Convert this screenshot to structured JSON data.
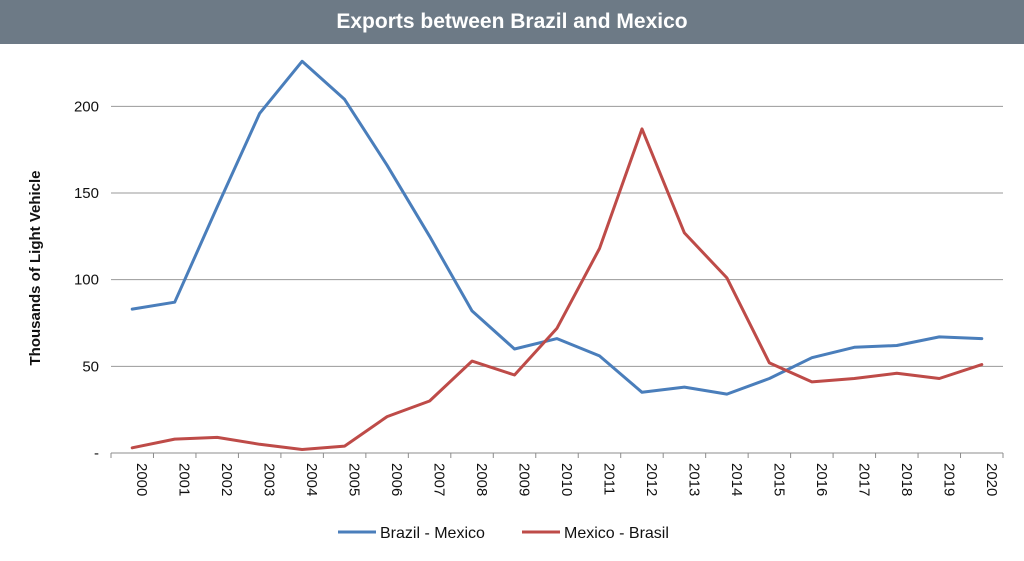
{
  "chart_data": {
    "type": "line",
    "title": "Exports between Brazil and Mexico",
    "xlabel": "",
    "ylabel": "Thousands of Light Vehicle",
    "categories": [
      "2000",
      "2001",
      "2002",
      "2003",
      "2004",
      "2005",
      "2006",
      "2007",
      "2008",
      "2009",
      "2010",
      "2011",
      "2012",
      "2013",
      "2014",
      "2015",
      "2016",
      "2017",
      "2018",
      "2019",
      "2020"
    ],
    "ylim": [
      0,
      225
    ],
    "yticks": [
      0,
      50,
      100,
      150,
      200
    ],
    "ytick_labels": [
      "-",
      "50",
      "100",
      "150",
      "200"
    ],
    "grid": true,
    "legend_position": "bottom",
    "series": [
      {
        "name": "Brazil - Mexico",
        "color": "#4a7ebb",
        "values": [
          83,
          87,
          142,
          196,
          226,
          204,
          166,
          125,
          82,
          60,
          66,
          56,
          35,
          38,
          34,
          43,
          55,
          61,
          62,
          67,
          66
        ]
      },
      {
        "name": "Mexico - Brasil",
        "color": "#be4b48",
        "values": [
          3,
          8,
          9,
          5,
          2,
          4,
          21,
          30,
          53,
          45,
          72,
          118,
          187,
          127,
          101,
          52,
          41,
          43,
          46,
          43,
          51
        ]
      }
    ]
  }
}
